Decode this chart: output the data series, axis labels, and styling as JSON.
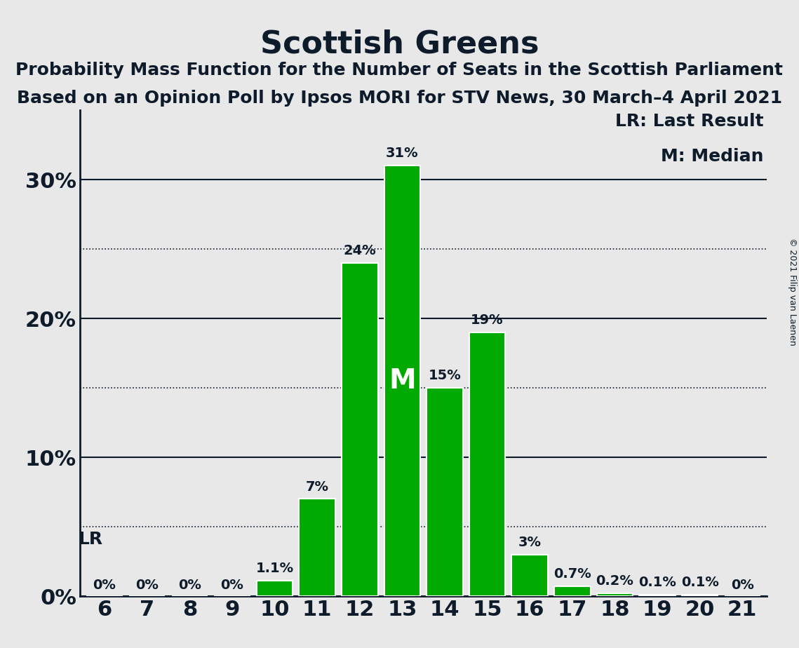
{
  "title": "Scottish Greens",
  "subtitle1": "Probability Mass Function for the Number of Seats in the Scottish Parliament",
  "subtitle2": "Based on an Opinion Poll by Ipsos MORI for STV News, 30 March–4 April 2021",
  "copyright": "© 2021 Filip van Laenen",
  "x_values": [
    6,
    7,
    8,
    9,
    10,
    11,
    12,
    13,
    14,
    15,
    16,
    17,
    18,
    19,
    20,
    21
  ],
  "y_values": [
    0.0,
    0.0,
    0.0,
    0.0,
    1.1,
    7.0,
    24.0,
    31.0,
    15.0,
    19.0,
    3.0,
    0.7,
    0.2,
    0.1,
    0.1,
    0.0
  ],
  "bar_color": "#00aa00",
  "bar_edge_color": "#ffffff",
  "bar_labels": [
    "0%",
    "0%",
    "0%",
    "0%",
    "1.1%",
    "7%",
    "24%",
    "31%",
    "15%",
    "19%",
    "3%",
    "0.7%",
    "0.2%",
    "0.1%",
    "0.1%",
    "0%"
  ],
  "median_seat": 13,
  "last_result_seat": 6,
  "lr_value": 5.0,
  "yticks": [
    0,
    10,
    20,
    30
  ],
  "ytick_labels": [
    "0%",
    "10%",
    "20%",
    "30%"
  ],
  "dotted_lines": [
    5.0,
    15.0,
    25.0
  ],
  "ylim": [
    0,
    35
  ],
  "background_color": "#e8e8e8",
  "plot_bg_color": "#e8e8e8",
  "text_color": "#0d1b2a",
  "bar_label_fontsize": 14,
  "title_fontsize": 32,
  "subtitle_fontsize": 18,
  "axis_label_fontsize": 18,
  "tick_fontsize": 22,
  "legend_fontsize": 18,
  "lr_legend": "LR: Last Result",
  "m_legend": "M: Median"
}
